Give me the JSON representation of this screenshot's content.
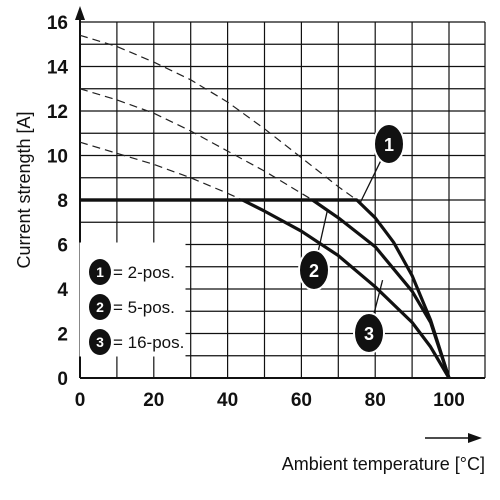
{
  "chart_data": {
    "type": "line",
    "title": "",
    "xlabel": "Ambient temperature [°C]",
    "ylabel": "Current strength [A]",
    "xlim": [
      0,
      100
    ],
    "ylim": [
      0,
      16
    ],
    "x_ticks": [
      0,
      20,
      40,
      60,
      80,
      100
    ],
    "y_ticks": [
      0,
      2,
      4,
      6,
      8,
      10,
      12,
      14,
      16
    ],
    "grid": true,
    "legend": {
      "placement": "left-middle",
      "entries": [
        {
          "badge": "1",
          "label": "= 2-pos."
        },
        {
          "badge": "2",
          "label": "= 5-pos."
        },
        {
          "badge": "3",
          "label": "= 16-pos."
        }
      ]
    },
    "series": [
      {
        "badge": "1",
        "limit": 8,
        "solid": [
          [
            0,
            8
          ],
          [
            75,
            8
          ],
          [
            80,
            7.2
          ],
          [
            85,
            6.1
          ],
          [
            90,
            4.6
          ],
          [
            95,
            2.6
          ],
          [
            100,
            0
          ]
        ],
        "dashed": [
          [
            0,
            15.4
          ],
          [
            10,
            14.9
          ],
          [
            20,
            14.2
          ],
          [
            30,
            13.4
          ],
          [
            40,
            12.4
          ],
          [
            50,
            11.2
          ],
          [
            60,
            9.9
          ],
          [
            70,
            8.6
          ],
          [
            75,
            8
          ]
        ]
      },
      {
        "badge": "2",
        "limit": 8,
        "solid": [
          [
            63,
            8
          ],
          [
            70,
            7.2
          ],
          [
            80,
            5.9
          ],
          [
            90,
            3.9
          ],
          [
            95,
            2.5
          ],
          [
            100,
            0
          ]
        ],
        "dashed": [
          [
            0,
            13
          ],
          [
            10,
            12.5
          ],
          [
            20,
            11.9
          ],
          [
            30,
            11.1
          ],
          [
            40,
            10.2
          ],
          [
            50,
            9.3
          ],
          [
            60,
            8.3
          ],
          [
            63,
            8
          ]
        ]
      },
      {
        "badge": "3",
        "limit": 8,
        "solid": [
          [
            44,
            8
          ],
          [
            50,
            7.5
          ],
          [
            60,
            6.6
          ],
          [
            70,
            5.5
          ],
          [
            80,
            4.1
          ],
          [
            90,
            2.5
          ],
          [
            95,
            1.4
          ],
          [
            100,
            0
          ]
        ],
        "dashed": [
          [
            0,
            10.6
          ],
          [
            10,
            10.1
          ],
          [
            20,
            9.6
          ],
          [
            30,
            9
          ],
          [
            40,
            8.3
          ],
          [
            44,
            8
          ]
        ]
      }
    ],
    "callouts": [
      {
        "badge": "1",
        "at": [
          76,
          7.9
        ]
      },
      {
        "badge": "2",
        "at": [
          67,
          7.5
        ]
      },
      {
        "badge": "3",
        "at": [
          82,
          4.4
        ]
      }
    ]
  }
}
